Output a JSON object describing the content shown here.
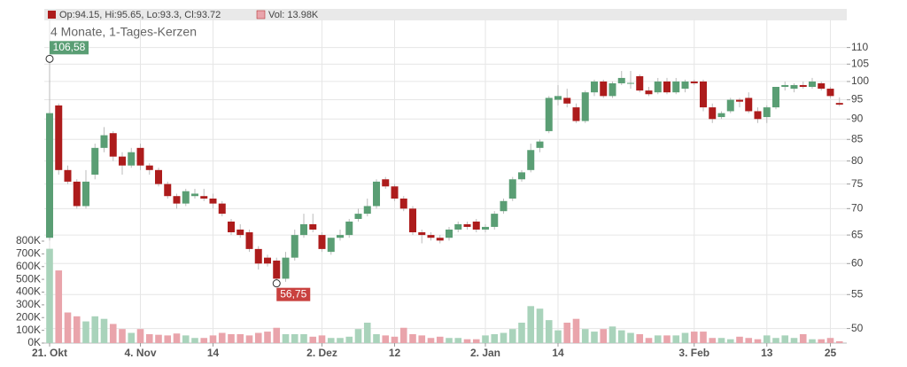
{
  "chart_data": {
    "type": "candlestick",
    "title": "4 Monate, 1-Tages-Kerzen",
    "header": {
      "ohlc": "Op:94.15, Hi:95.65, Lo:93.3, Cl:93.72",
      "volume": "Vol: 13.98K"
    },
    "high_label": "106,58",
    "low_label": "56,75",
    "categories": [
      "21. Okt",
      null,
      null,
      null,
      null,
      null,
      null,
      null,
      null,
      null,
      "4. Nov",
      null,
      null,
      null,
      null,
      null,
      null,
      null,
      "14",
      null,
      null,
      null,
      null,
      null,
      null,
      null,
      null,
      null,
      null,
      null,
      "2. Dez",
      null,
      null,
      null,
      null,
      null,
      null,
      null,
      "12",
      null,
      null,
      null,
      null,
      null,
      null,
      null,
      null,
      null,
      "2. Jan",
      null,
      null,
      null,
      null,
      null,
      null,
      null,
      "14",
      null,
      null,
      null,
      null,
      null,
      null,
      null,
      null,
      null,
      null,
      null,
      null,
      null,
      null,
      "3. Feb",
      null,
      null,
      null,
      null,
      null,
      null,
      null,
      "13",
      null,
      null,
      null,
      null,
      null,
      null,
      "25",
      null
    ],
    "open": [
      64.5,
      93.5,
      78,
      75.5,
      70.5,
      77,
      83,
      86.5,
      81,
      79,
      83,
      79,
      78,
      75,
      72.5,
      71,
      72.5,
      72.5,
      72,
      71,
      67.5,
      66,
      65.5,
      62.5,
      61,
      60.5,
      57.5,
      61,
      65,
      67,
      65,
      62,
      64.5,
      65,
      68,
      69,
      70.5,
      76,
      74.5,
      72,
      70,
      65.5,
      65,
      64.5,
      64.5,
      66,
      67,
      67.5,
      66,
      66.5,
      69.5,
      72,
      76,
      78,
      83,
      87,
      95,
      95.5,
      93,
      89.5,
      97,
      100,
      96,
      99.5,
      99.5,
      101.5,
      97.5,
      97,
      100,
      97,
      98,
      100,
      100,
      93,
      90.5,
      92,
      95,
      95.5,
      92,
      90.5,
      93,
      98.5,
      98,
      99,
      98.5,
      99.5,
      98,
      94.15
    ],
    "high": [
      106.58,
      94,
      79,
      76,
      78,
      84,
      88,
      87,
      82,
      83,
      84,
      79.5,
      78.5,
      75.5,
      73,
      74,
      74,
      74,
      73,
      71.5,
      68,
      67,
      66,
      63,
      61.5,
      61,
      62,
      66,
      69,
      69,
      65.5,
      64.5,
      66,
      68,
      70,
      72,
      76,
      76.5,
      75,
      72.5,
      70.5,
      66,
      65.5,
      65,
      66.5,
      67.5,
      67.5,
      68,
      67,
      69.5,
      72,
      76.5,
      78,
      84,
      85,
      96,
      99,
      98,
      94,
      97.5,
      100.5,
      100.5,
      100,
      103,
      103,
      102,
      98.5,
      101,
      101,
      101,
      100.5,
      100.5,
      100.5,
      94,
      92,
      95.5,
      95.5,
      97,
      93,
      93.5,
      98.5,
      100,
      99.5,
      100,
      101,
      100,
      98.5,
      95.65
    ],
    "low": [
      64,
      77,
      75,
      70,
      70,
      76,
      82,
      80,
      77,
      78.5,
      78,
      77,
      74.5,
      72,
      70,
      70.5,
      72,
      71.5,
      70,
      68.5,
      65,
      64.5,
      62,
      59,
      59.5,
      56.75,
      57,
      60.5,
      64.5,
      65.5,
      62,
      61.5,
      64,
      64.5,
      67.5,
      68.5,
      70,
      74,
      71.5,
      69.5,
      65,
      63.5,
      64,
      63.5,
      64,
      65.5,
      66,
      65.5,
      65.5,
      66,
      69,
      71.5,
      75.5,
      77.5,
      82,
      86.5,
      93.5,
      93,
      89,
      89,
      96,
      95.5,
      95.5,
      99,
      98,
      97,
      96,
      96.5,
      96.5,
      96.5,
      97,
      99,
      92,
      89,
      90,
      91.5,
      93,
      91.5,
      89,
      89,
      92.5,
      97.5,
      97,
      98,
      98,
      97.5,
      95.5,
      93.3
    ],
    "close": [
      91.5,
      78,
      75.5,
      70.5,
      75.5,
      83,
      86,
      81,
      79,
      82,
      79,
      78,
      75,
      72.5,
      71,
      73.5,
      73,
      72,
      71,
      69,
      65.5,
      65,
      62.5,
      60,
      60,
      57.5,
      61,
      65,
      67,
      66,
      62.5,
      64.5,
      65,
      67.5,
      69,
      70.5,
      75.5,
      74.5,
      72,
      70,
      65.5,
      65,
      64.5,
      64,
      66,
      67,
      66.5,
      66,
      66.5,
      69,
      71.5,
      76,
      77.5,
      82.5,
      84.5,
      95.5,
      96,
      94,
      89.5,
      97,
      100,
      96,
      99.5,
      101,
      99.6,
      97.5,
      96.5,
      100,
      97,
      100,
      100,
      99.5,
      93,
      90,
      91.5,
      95,
      94.5,
      92,
      90,
      93,
      98.5,
      99,
      99,
      98.5,
      100,
      98,
      96,
      93.72
    ],
    "volume": [
      740000,
      570000,
      240000,
      210000,
      170000,
      210000,
      190000,
      150000,
      110000,
      80000,
      110000,
      70000,
      65000,
      60000,
      75000,
      60000,
      40000,
      40000,
      60000,
      80000,
      70000,
      70000,
      60000,
      80000,
      90000,
      120000,
      70000,
      70000,
      70000,
      50000,
      60000,
      40000,
      40000,
      50000,
      110000,
      160000,
      70000,
      60000,
      50000,
      120000,
      70000,
      60000,
      40000,
      50000,
      40000,
      40000,
      30000,
      30000,
      60000,
      70000,
      80000,
      110000,
      160000,
      290000,
      270000,
      180000,
      100000,
      160000,
      190000,
      110000,
      90000,
      110000,
      130000,
      100000,
      80000,
      70000,
      40000,
      60000,
      60000,
      60000,
      80000,
      90000,
      90000,
      40000,
      40000,
      30000,
      50000,
      40000,
      30000,
      60000,
      40000,
      60000,
      40000,
      70000,
      30000,
      30000,
      40000,
      13980
    ],
    "ylim": [
      48,
      119
    ],
    "log_scale": true,
    "yticks": [
      50,
      55,
      60,
      65,
      70,
      75,
      80,
      85,
      90,
      95,
      100,
      105,
      110
    ],
    "y2lim": [
      0,
      800000
    ],
    "y2ticks": [
      {
        "value": 0,
        "label": "0K"
      },
      {
        "value": 100000,
        "label": "100K"
      },
      {
        "value": 200000,
        "label": "200K"
      },
      {
        "value": 300000,
        "label": "300K"
      },
      {
        "value": 400000,
        "label": "400K"
      },
      {
        "value": 500000,
        "label": "500K"
      },
      {
        "value": 600000,
        "label": "600K"
      },
      {
        "value": 700000,
        "label": "700K"
      },
      {
        "value": 800000,
        "label": "800K"
      }
    ],
    "grid": true,
    "up_color": "#5a9e74",
    "down_color": "#ad1c1c",
    "volume_up_color": "#a9d3bb",
    "volume_down_color": "#e9a4ab"
  }
}
